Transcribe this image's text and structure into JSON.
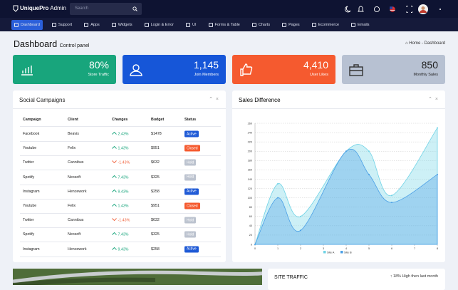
{
  "header": {
    "logo_bold": "UniquePro",
    "logo_light": "Admin",
    "search_placeholder": "Search"
  },
  "menu": [
    "Dashboard",
    "Support",
    "Apps",
    "Widgets",
    "Login & Error",
    "UI",
    "Forms & Table",
    "Charts",
    "Pages",
    "Ecommerce",
    "Emails"
  ],
  "page": {
    "title": "Dashboard",
    "subtitle": "Control panel",
    "breadcrumb": [
      "Home",
      "Dashboard"
    ]
  },
  "stats": [
    {
      "value": "80%",
      "label": "Store Traffic",
      "color": "#18a57c"
    },
    {
      "value": "1,145",
      "label": "Join Members",
      "color": "#1656d8"
    },
    {
      "value": "4,410",
      "label": "User Likes",
      "color": "#f55a2f"
    },
    {
      "value": "850",
      "label": "Monthly Sales",
      "color": "#b7c1d2"
    }
  ],
  "social_campaigns": {
    "title": "Social Campaigns",
    "columns": [
      "Campaign",
      "Client",
      "Changes",
      "Budget",
      "Status"
    ],
    "rows": [
      [
        "Facebook",
        "Beavis",
        "2.43%",
        "$1478",
        "Active"
      ],
      [
        "Youtube",
        "Felix",
        "1.43%",
        "$951",
        "Closed"
      ],
      [
        "Twitter",
        "Cannibus",
        "-1.43%",
        "$632",
        "Hold"
      ],
      [
        "Spotify",
        "Neosoft",
        "7.43%",
        "$325",
        "Hold"
      ],
      [
        "Instagram",
        "Hencework",
        "9.43%",
        "$258",
        "Active"
      ],
      [
        "Youtube",
        "Felix",
        "1.43%",
        "$951",
        "Closed"
      ],
      [
        "Twitter",
        "Cannibus",
        "-1.43%",
        "$632",
        "Hold"
      ],
      [
        "Spotify",
        "Neosoft",
        "7.43%",
        "$325",
        "Hold"
      ],
      [
        "Instagram",
        "Hencework",
        "9.43%",
        "$258",
        "Active"
      ]
    ]
  },
  "sales_difference": {
    "title": "Sales Difference",
    "type": "area",
    "x": [
      0,
      1,
      2,
      4,
      5,
      6,
      8
    ],
    "series": [
      {
        "name": "Site A",
        "color": "#6fd3e6",
        "values": [
          0,
          130,
          60,
          200,
          200,
          105,
          250
        ]
      },
      {
        "name": "Site B",
        "color": "#4a9fe6",
        "values": [
          0,
          100,
          30,
          200,
          150,
          90,
          150
        ]
      }
    ],
    "xlim": [
      0,
      8
    ],
    "xticks": [
      0,
      1,
      2,
      3,
      4,
      5,
      6,
      7,
      8
    ],
    "ylim": [
      0,
      260
    ],
    "yticks": [
      0,
      20,
      40,
      60,
      80,
      100,
      120,
      140,
      160,
      180,
      200,
      220,
      240,
      260
    ],
    "grid": true
  },
  "site_traffic": {
    "title": "SITE TRAFFIC",
    "note": "↑ 18% High then last month"
  }
}
